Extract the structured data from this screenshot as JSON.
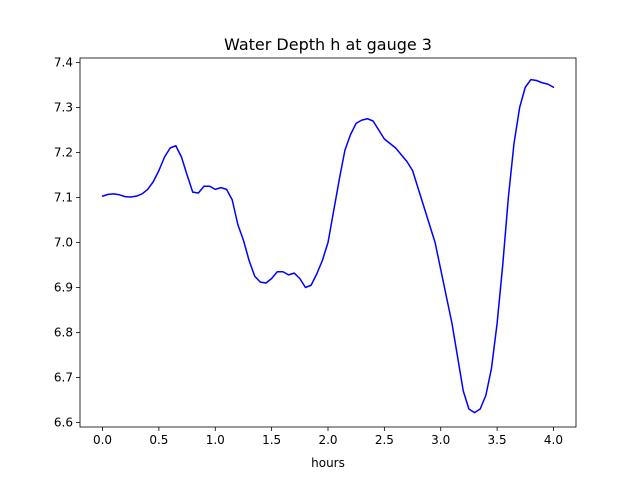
{
  "chart_data": {
    "type": "line",
    "title": "Water Depth h at gauge 3",
    "xlabel": "hours",
    "ylabel": "",
    "xlim": [
      -0.2,
      4.2
    ],
    "ylim": [
      6.59,
      7.41
    ],
    "xticks": [
      0.0,
      0.5,
      1.0,
      1.5,
      2.0,
      2.5,
      3.0,
      3.5,
      4.0
    ],
    "xtick_labels": [
      "0.0",
      "0.5",
      "1.0",
      "1.5",
      "2.0",
      "2.5",
      "3.0",
      "3.5",
      "4.0"
    ],
    "yticks": [
      6.6,
      6.7,
      6.8,
      6.9,
      7.0,
      7.1,
      7.2,
      7.3,
      7.4
    ],
    "ytick_labels": [
      "6.6",
      "6.7",
      "6.8",
      "6.9",
      "7.0",
      "7.1",
      "7.2",
      "7.3",
      "7.4"
    ],
    "grid": false,
    "series": [
      {
        "color": "#0000ff",
        "x": [
          0.0,
          0.05,
          0.1,
          0.15,
          0.2,
          0.25,
          0.3,
          0.35,
          0.4,
          0.45,
          0.5,
          0.55,
          0.6,
          0.65,
          0.7,
          0.75,
          0.8,
          0.85,
          0.9,
          0.95,
          1.0,
          1.05,
          1.1,
          1.15,
          1.2,
          1.25,
          1.3,
          1.35,
          1.4,
          1.45,
          1.5,
          1.55,
          1.6,
          1.65,
          1.7,
          1.75,
          1.8,
          1.85,
          1.9,
          1.95,
          2.0,
          2.05,
          2.1,
          2.15,
          2.2,
          2.25,
          2.3,
          2.35,
          2.4,
          2.45,
          2.5,
          2.55,
          2.6,
          2.65,
          2.7,
          2.75,
          2.8,
          2.85,
          2.9,
          2.95,
          3.0,
          3.05,
          3.1,
          3.15,
          3.2,
          3.25,
          3.3,
          3.35,
          3.4,
          3.45,
          3.5,
          3.55,
          3.6,
          3.65,
          3.7,
          3.75,
          3.8,
          3.85,
          3.9,
          3.95,
          4.0
        ],
        "y": [
          7.103,
          7.107,
          7.108,
          7.106,
          7.102,
          7.101,
          7.103,
          7.108,
          7.118,
          7.135,
          7.16,
          7.19,
          7.21,
          7.215,
          7.19,
          7.15,
          7.112,
          7.11,
          7.125,
          7.125,
          7.118,
          7.122,
          7.118,
          7.095,
          7.04,
          7.005,
          6.96,
          6.925,
          6.912,
          6.91,
          6.92,
          6.935,
          6.935,
          6.928,
          6.932,
          6.92,
          6.9,
          6.905,
          6.93,
          6.96,
          7.0,
          7.07,
          7.14,
          7.205,
          7.24,
          7.265,
          7.272,
          7.275,
          7.27,
          7.25,
          7.23,
          7.22,
          7.21,
          7.195,
          7.18,
          7.16,
          7.12,
          7.08,
          7.04,
          7.0,
          6.94,
          6.88,
          6.82,
          6.745,
          6.67,
          6.63,
          6.622,
          6.63,
          6.66,
          6.72,
          6.82,
          6.95,
          7.1,
          7.22,
          7.3,
          7.345,
          7.362,
          7.36,
          7.355,
          7.352,
          7.345
        ]
      }
    ]
  }
}
